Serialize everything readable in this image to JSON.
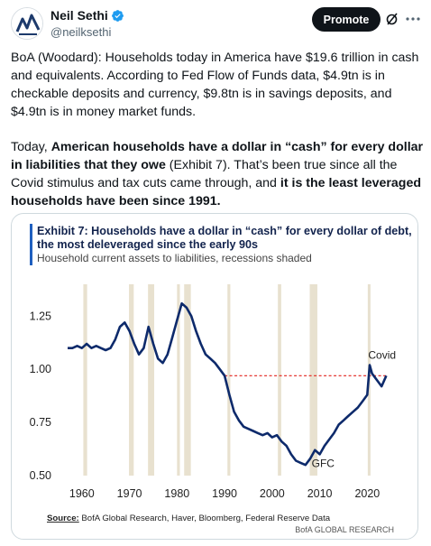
{
  "author": {
    "display_name": "Neil Sethi",
    "handle": "@neilksethi",
    "avatar_icon": "logo-avatar-icon"
  },
  "header_actions": {
    "promote_label": "Promote",
    "grok_icon": "grok-icon",
    "more_icon": "more-dots-icon"
  },
  "tweet": {
    "p1": "BoA (Woodard): Households today in America have $19.6 trillion in cash and equivalents. According to Fed Flow of Funds data, $4.9tn is in checkable deposits and currency, $9.8tn is in savings deposits, and $4.9tn is in money market funds.",
    "p2_a": "Today, ",
    "p2_b": "American households have a dollar in “cash” for every dollar in liabilities that they owe",
    "p2_c": " (Exhibit 7). That’s been true since all the Covid stimulus and tax cuts came through, and ",
    "p2_d": "it is the least leveraged households have been since 1991."
  },
  "chart_data": {
    "type": "line",
    "title_line1": "Exhibit 7: Households have a dollar in “cash” for every dollar of debt,",
    "title_line2": "the most deleveraged since the early 90s",
    "subtitle": "Household current assets to liabilities, recessions shaded",
    "source_label": "Source:",
    "source_text": " BofA Global Research, Haver, Bloomberg, Federal Reserve Data",
    "brand": "BofA GLOBAL RESEARCH",
    "xlim": [
      1957,
      2026
    ],
    "ylim": [
      0.5,
      1.4
    ],
    "x_ticks": [
      "1960",
      "1970",
      "1980",
      "1990",
      "2000",
      "2010",
      "2020"
    ],
    "y_ticks": [
      "0.50",
      "0.75",
      "1.00",
      "1.25"
    ],
    "line_color": "#0d2a6b",
    "recession_color": "#e8e1cf",
    "reference_line": {
      "y": 0.97,
      "x_start": 1990,
      "x_end": 2024,
      "color": "#e3201b"
    },
    "annotations": [
      {
        "text": "Covid",
        "x": 2020.2,
        "y": 1.05
      },
      {
        "text": "GFC",
        "x": 2008.3,
        "y": 0.54
      }
    ],
    "recessions": [
      [
        1960.3,
        1961.1
      ],
      [
        1969.9,
        1970.9
      ],
      [
        1973.9,
        1975.2
      ],
      [
        1980.0,
        1980.6
      ],
      [
        1981.5,
        1982.9
      ],
      [
        1990.6,
        1991.2
      ],
      [
        2001.2,
        2001.9
      ],
      [
        2007.9,
        2009.5
      ],
      [
        2020.1,
        2020.6
      ]
    ],
    "series": [
      {
        "x": [
          1957,
          1958,
          1959,
          1960,
          1961,
          1962,
          1963,
          1964,
          1965,
          1966,
          1967,
          1968,
          1969,
          1970,
          1971,
          1972,
          1973,
          1974,
          1975,
          1976,
          1977,
          1978,
          1979,
          1980,
          1981,
          1982,
          1983,
          1984,
          1985,
          1986,
          1987,
          1988,
          1989,
          1990,
          1991,
          1992,
          1993,
          1994,
          1995,
          1996,
          1997,
          1998,
          1999,
          2000,
          2001,
          2002,
          2003,
          2004,
          2005,
          2006,
          2007,
          2008,
          2009,
          2010,
          2011,
          2012,
          2013,
          2014,
          2015,
          2016,
          2017,
          2018,
          2019,
          2020,
          2020.5,
          2021,
          2022,
          2023,
          2024
        ],
        "y": [
          1.1,
          1.1,
          1.11,
          1.1,
          1.12,
          1.1,
          1.11,
          1.1,
          1.09,
          1.1,
          1.14,
          1.2,
          1.22,
          1.18,
          1.12,
          1.07,
          1.1,
          1.2,
          1.12,
          1.05,
          1.03,
          1.07,
          1.15,
          1.23,
          1.31,
          1.29,
          1.25,
          1.18,
          1.12,
          1.07,
          1.05,
          1.03,
          1.0,
          0.97,
          0.88,
          0.8,
          0.76,
          0.73,
          0.72,
          0.71,
          0.7,
          0.69,
          0.7,
          0.68,
          0.69,
          0.66,
          0.64,
          0.6,
          0.57,
          0.56,
          0.55,
          0.58,
          0.62,
          0.6,
          0.64,
          0.67,
          0.7,
          0.74,
          0.76,
          0.78,
          0.8,
          0.82,
          0.85,
          0.88,
          1.02,
          0.98,
          0.95,
          0.92,
          0.97
        ]
      }
    ]
  }
}
